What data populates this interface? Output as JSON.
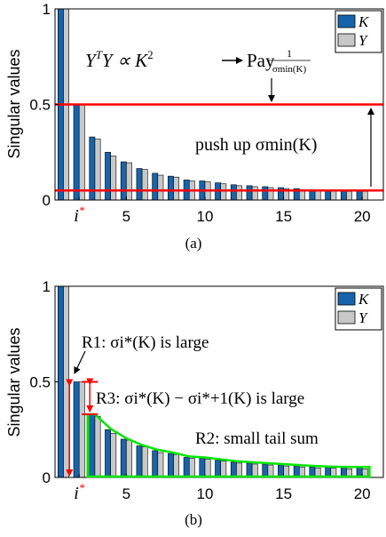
{
  "colors": {
    "K": "#1764ab",
    "Y": "#c8c8c8",
    "highlight_red": "#ff0000",
    "tail_green": "#00e600"
  },
  "chart_data": [
    {
      "type": "bar",
      "panel_label": "(a)",
      "ylabel": "Singular values",
      "ylim": [
        0,
        1
      ],
      "yticks": [
        "0",
        "0.5",
        "1"
      ],
      "x": [
        1,
        2,
        3,
        4,
        5,
        6,
        7,
        8,
        9,
        10,
        11,
        12,
        13,
        14,
        15,
        16,
        17,
        18,
        19,
        20
      ],
      "xticks": [
        "i*",
        "5",
        "10",
        "15",
        "20"
      ],
      "series": [
        {
          "name": "K",
          "values": [
            1.0,
            0.5,
            0.33,
            0.25,
            0.2,
            0.165,
            0.14,
            0.125,
            0.105,
            0.1,
            0.09,
            0.08,
            0.075,
            0.07,
            0.065,
            0.06,
            0.055,
            0.052,
            0.05,
            0.05
          ]
        },
        {
          "name": "Y",
          "values": [
            1.0,
            0.5,
            0.32,
            0.23,
            0.195,
            0.16,
            0.13,
            0.12,
            0.1,
            0.095,
            0.085,
            0.075,
            0.07,
            0.065,
            0.06,
            0.055,
            0.05,
            0.048,
            0.045,
            0.045
          ]
        }
      ],
      "reference_lines": [
        0.5,
        0.05
      ],
      "annotations": {
        "eq_lhs": "Y",
        "eq_lhs_sup": "T",
        "eq_lhs2": "Y ∝ K",
        "eq_exp": "2",
        "pay": "Pay",
        "frac_num": "1",
        "frac_den": "σmin(K)",
        "push": "push up σmin(K)"
      },
      "legend_position": "top-right"
    },
    {
      "type": "bar",
      "panel_label": "(b)",
      "ylabel": "Singular values",
      "ylim": [
        0,
        1
      ],
      "yticks": [
        "0",
        "0.5",
        "1"
      ],
      "x": [
        1,
        2,
        3,
        4,
        5,
        6,
        7,
        8,
        9,
        10,
        11,
        12,
        13,
        14,
        15,
        16,
        17,
        18,
        19,
        20
      ],
      "xticks": [
        "i*",
        "5",
        "10",
        "15",
        "20"
      ],
      "series": [
        {
          "name": "K",
          "values": [
            1.0,
            0.5,
            0.33,
            0.25,
            0.2,
            0.165,
            0.14,
            0.125,
            0.105,
            0.1,
            0.09,
            0.08,
            0.075,
            0.07,
            0.065,
            0.06,
            0.055,
            0.052,
            0.05,
            0.05
          ]
        },
        {
          "name": "Y",
          "values": [
            1.0,
            0.5,
            0.32,
            0.23,
            0.195,
            0.16,
            0.13,
            0.12,
            0.1,
            0.095,
            0.085,
            0.075,
            0.07,
            0.065,
            0.06,
            0.055,
            0.05,
            0.048,
            0.045,
            0.045
          ]
        }
      ],
      "annotations": {
        "r1": "R1: σi*(K) is large",
        "r3": "R3: σi*(K) − σi*+1(K) is large",
        "r2": "R2: small tail sum"
      },
      "legend_position": "top-right"
    }
  ]
}
